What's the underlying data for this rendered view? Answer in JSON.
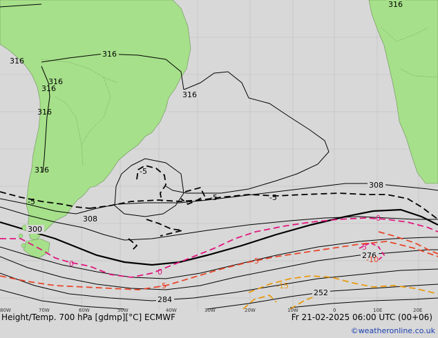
{
  "colors": {
    "ocean": "#d8d8d8",
    "land": "#a6e08a",
    "contour_height": "#000000",
    "temp_neg": "#000000",
    "temp_zero": "#e0157f",
    "temp_minus5": "#e8452a",
    "temp_warm": "#e89a10",
    "credit": "#1a3fb0"
  },
  "map": {
    "height_labels": [
      "316",
      "316",
      "316",
      "316",
      "316",
      "316",
      "316",
      "316",
      "308",
      "308",
      "300",
      "284",
      "276",
      "252"
    ],
    "temp_labels": [
      "-5",
      "-5",
      "-5",
      "-5",
      "0",
      "0",
      "0",
      "-5",
      "-5",
      "-5",
      "-10",
      "-15"
    ],
    "lon_ticks": [
      "80W",
      "70W",
      "60W",
      "50W",
      "40W",
      "30W",
      "20W",
      "10W",
      "0",
      "10E",
      "20E"
    ]
  },
  "footer": {
    "title": "Height/Temp. 700 hPa [gdmp][°C] ECMWF",
    "valid_time": "Fr 21-02-2025 06:00 UTC (00+06)",
    "credit": "©weatheronline.co.uk"
  }
}
